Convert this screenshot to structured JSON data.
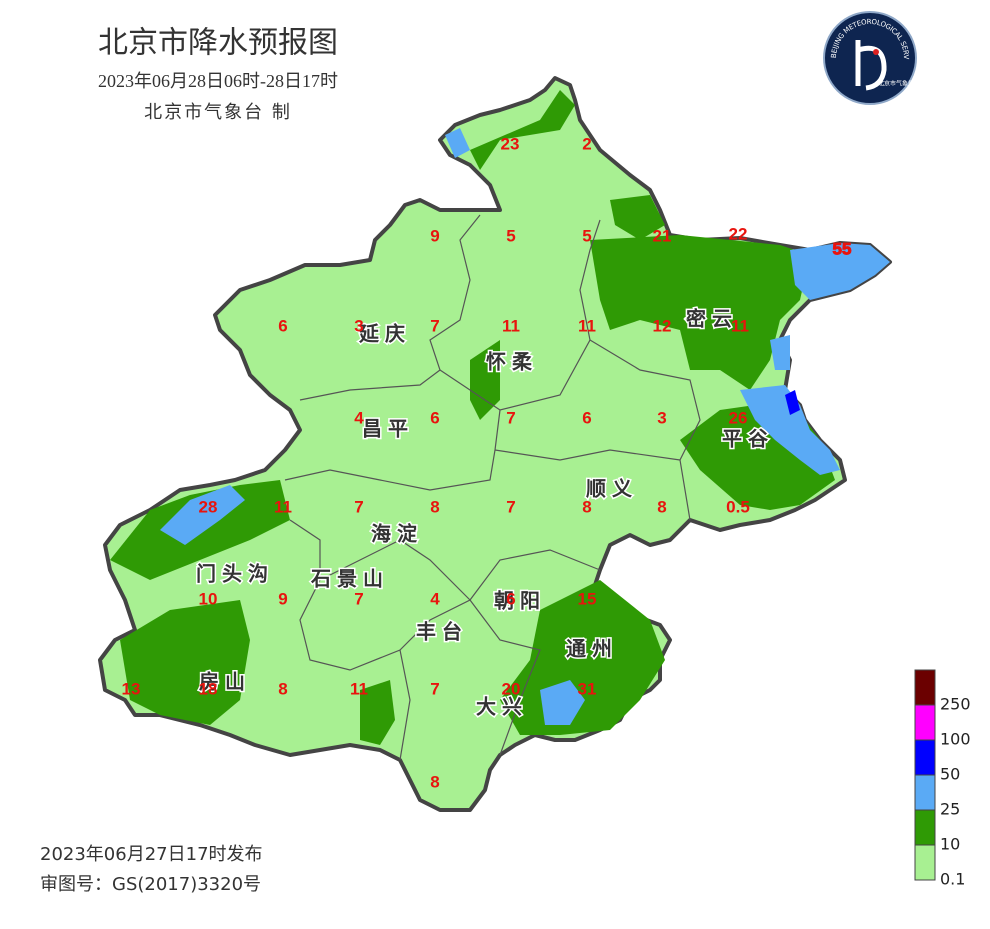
{
  "header": {
    "title": "北京市降水预报图",
    "period": "2023年06月28日06时-28日17时",
    "issuer": "北京市气象台 制"
  },
  "logo": {
    "ring_text": "BEIJING METEOROLOGICAL SERVICE",
    "agency": "北京市气象局"
  },
  "districts": [
    "延庆",
    "怀柔",
    "密云",
    "昌平",
    "平谷",
    "顺义",
    "海淀",
    "门头沟",
    "石景山",
    "朝阳",
    "丰台",
    "通州",
    "房山",
    "大兴"
  ],
  "station_values": [
    23,
    2,
    9,
    5,
    5,
    21,
    22,
    55,
    6,
    3,
    7,
    11,
    11,
    12,
    11,
    4,
    6,
    7,
    6,
    3,
    26,
    28,
    11,
    7,
    8,
    7,
    8,
    8,
    0.5,
    10,
    9,
    7,
    4,
    6,
    15,
    13,
    18,
    8,
    11,
    7,
    20,
    31,
    8
  ],
  "legend": {
    "items": [
      {
        "label": "250",
        "color": "#6b0000"
      },
      {
        "label": "100",
        "color": "#ff00ff"
      },
      {
        "label": "50",
        "color": "#0000ff"
      },
      {
        "label": "25",
        "color": "#5aaaf5"
      },
      {
        "label": "10",
        "color": "#2f9a05"
      },
      {
        "label": "0.1",
        "color": "#a8f092"
      }
    ]
  },
  "footer": {
    "issued": "2023年06月27日17时发布",
    "review_number": "审图号：GS(2017)3320号"
  }
}
